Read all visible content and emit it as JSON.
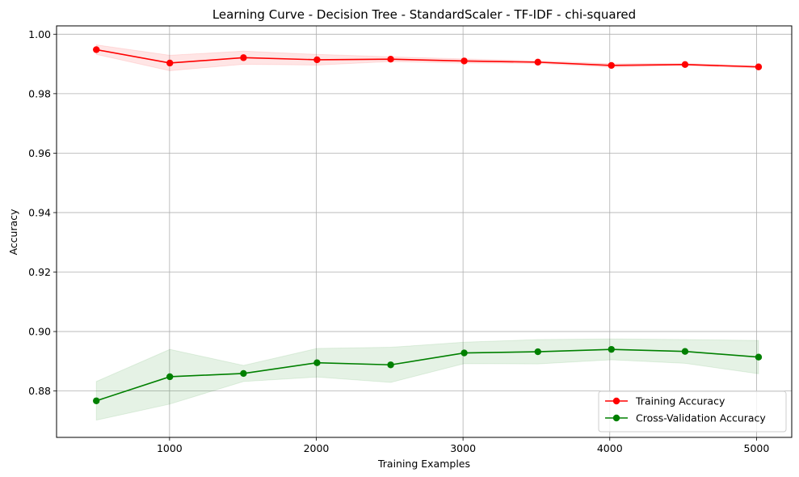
{
  "chart_data": {
    "type": "line",
    "title": "Learning Curve - Decision Tree - StandardScaler - TF-IDF - chi-squared",
    "xlabel": "Training Examples",
    "ylabel": "Accuracy",
    "xlim": [
      230,
      5240
    ],
    "ylim": [
      0.8644,
      1.0028
    ],
    "xticks": [
      1000,
      2000,
      3000,
      4000,
      5000
    ],
    "yticks": [
      0.88,
      0.9,
      0.92,
      0.94,
      0.96,
      0.98,
      1.0
    ],
    "ytick_labels": [
      "0.88",
      "0.90",
      "0.92",
      "0.94",
      "0.96",
      "0.98",
      "1.00"
    ],
    "grid": true,
    "legend_position": "lower-right",
    "x": [
      501,
      1002,
      1504,
      2005,
      2507,
      3008,
      3510,
      4011,
      4513,
      5014
    ],
    "series": [
      {
        "name": "Training Accuracy",
        "color": "#ff0000",
        "fill_color": "#ff0000",
        "values": [
          0.9948,
          0.9903,
          0.9921,
          0.9914,
          0.9916,
          0.991,
          0.9906,
          0.9895,
          0.9898,
          0.989
        ],
        "lower": [
          0.9932,
          0.9877,
          0.9899,
          0.9896,
          0.9908,
          0.9903,
          0.9902,
          0.9889,
          0.9895,
          0.9886
        ],
        "upper": [
          0.9964,
          0.9929,
          0.9943,
          0.9932,
          0.9924,
          0.9917,
          0.991,
          0.9901,
          0.9901,
          0.9894
        ]
      },
      {
        "name": "Cross-Validation Accuracy",
        "color": "#008000",
        "fill_color": "#008000",
        "values": [
          0.8767,
          0.8848,
          0.8859,
          0.8895,
          0.8888,
          0.8928,
          0.8932,
          0.894,
          0.8933,
          0.8914
        ],
        "lower": [
          0.8702,
          0.8756,
          0.8832,
          0.8847,
          0.8829,
          0.8892,
          0.8891,
          0.8905,
          0.8893,
          0.8858
        ],
        "upper": [
          0.8832,
          0.894,
          0.8886,
          0.8943,
          0.8947,
          0.8964,
          0.8973,
          0.8975,
          0.8973,
          0.897
        ]
      }
    ]
  }
}
